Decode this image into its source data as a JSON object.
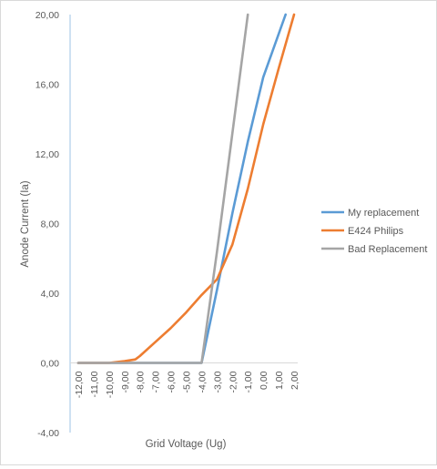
{
  "chart_data": {
    "type": "line",
    "xlabel": "Grid Voltage (Ug)",
    "ylabel": "Anode Current (Ia)",
    "xlim": [
      -12,
      2
    ],
    "ylim": [
      -4,
      20
    ],
    "y_ticks": [
      "-4,00",
      "0,00",
      "4,00",
      "8,00",
      "12,00",
      "16,00",
      "20,00"
    ],
    "y_tick_values": [
      -4,
      0,
      4,
      8,
      12,
      16,
      20
    ],
    "x_ticks": [
      "-12,00",
      "-11,00",
      "-10,00",
      "-9,00",
      "-8,00",
      "-7,00",
      "-6,00",
      "-5,00",
      "-4,00",
      "-3,00",
      "-2,00",
      "-1,00",
      "0,00",
      "1,00",
      "2,00"
    ],
    "x_tick_values": [
      -12,
      -11,
      -10,
      -9,
      -8,
      -7,
      -6,
      -5,
      -4,
      -3,
      -2,
      -1,
      0,
      1,
      2
    ],
    "grid": false,
    "legend_position": "right",
    "series": [
      {
        "name": "My replacement",
        "color": "#5b9bd5",
        "points": [
          [
            -12,
            0
          ],
          [
            -11,
            0
          ],
          [
            -10,
            0
          ],
          [
            -9,
            0
          ],
          [
            -8,
            0
          ],
          [
            -7,
            0
          ],
          [
            -6,
            0
          ],
          [
            -5,
            0
          ],
          [
            -4,
            0
          ],
          [
            -3,
            4.2
          ],
          [
            -2,
            8.6
          ],
          [
            -1,
            12.7
          ],
          [
            0,
            16.4
          ],
          [
            1.45,
            20
          ]
        ]
      },
      {
        "name": "E424 Philips",
        "color": "#ed7d31",
        "points": [
          [
            -12,
            0
          ],
          [
            -11,
            0
          ],
          [
            -10,
            0
          ],
          [
            -9,
            0.1
          ],
          [
            -8.3,
            0.2
          ],
          [
            -8,
            0.4
          ],
          [
            -7,
            1.2
          ],
          [
            -6,
            2
          ],
          [
            -5,
            2.9
          ],
          [
            -4,
            3.9
          ],
          [
            -3,
            4.8
          ],
          [
            -2,
            6.8
          ],
          [
            -1,
            10
          ],
          [
            0,
            13.7
          ],
          [
            1,
            16.9
          ],
          [
            2,
            20
          ]
        ]
      },
      {
        "name": "Bad Replacement",
        "color": "#a5a5a5",
        "points": [
          [
            -12,
            0
          ],
          [
            -11,
            0
          ],
          [
            -10,
            0
          ],
          [
            -9,
            0
          ],
          [
            -8,
            0
          ],
          [
            -7,
            0
          ],
          [
            -6,
            0
          ],
          [
            -5,
            0
          ],
          [
            -4,
            0
          ],
          [
            -3,
            6.4
          ],
          [
            -2,
            13.2
          ],
          [
            -1,
            20
          ]
        ]
      }
    ]
  }
}
